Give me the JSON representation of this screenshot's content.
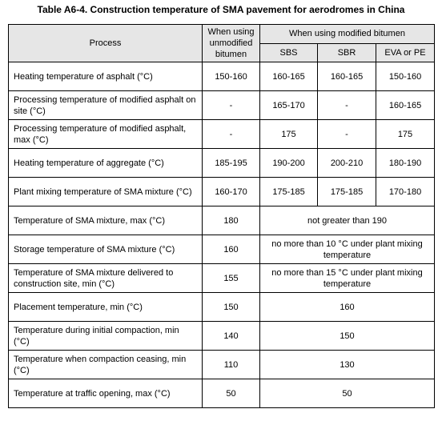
{
  "title": "Table A6-4.  Construction temperature of SMA pavement for aerodromes in China",
  "headers": {
    "process": "Process",
    "unmodified": "When using unmodified bitumen",
    "modified": "When using modified bitumen",
    "sbs": "SBS",
    "sbr": "SBR",
    "eva": "EVA or PE"
  },
  "rows": [
    {
      "process": "Heating temperature of asphalt (°C)",
      "unmodified": "150-160",
      "sbs": "160-165",
      "sbr": "160-165",
      "eva": "150-160"
    },
    {
      "process": "Processing temperature of modified asphalt on site (°C)",
      "unmodified": "-",
      "sbs": "165-170",
      "sbr": "-",
      "eva": "160-165"
    },
    {
      "process": "Processing temperature of modified asphalt, max (°C)",
      "unmodified": "-",
      "sbs": "175",
      "sbr": "-",
      "eva": "175"
    },
    {
      "process": "Heating temperature of aggregate (°C)",
      "unmodified": "185-195",
      "sbs": "190-200",
      "sbr": "200-210",
      "eva": "180-190"
    },
    {
      "process": "Plant mixing temperature of SMA mixture (°C)",
      "unmodified": "160-170",
      "sbs": "175-185",
      "sbr": "175-185",
      "eva": "170-180"
    },
    {
      "process": "Temperature of SMA mixture, max (°C)",
      "unmodified": "180",
      "modified": "not greater than 190"
    },
    {
      "process": "Storage temperature of SMA mixture (°C)",
      "unmodified": "160",
      "modified": "no more than 10 °C under plant mixing temperature"
    },
    {
      "process": "Temperature of SMA mixture delivered to construction site,  min (°C)",
      "unmodified": "155",
      "modified": "no more than 15 °C under plant mixing temperature"
    },
    {
      "process": "Placement temperature, min (°C)",
      "unmodified": "150",
      "modified": "160"
    },
    {
      "process": "Temperature during initial compaction, min (°C)",
      "unmodified": "140",
      "modified": "150"
    },
    {
      "process": "Temperature when compaction ceasing, min (°C)",
      "unmodified": "110",
      "modified": "130"
    },
    {
      "process": "Temperature at traffic opening, max (°C)",
      "unmodified": "50",
      "modified": "50"
    }
  ]
}
